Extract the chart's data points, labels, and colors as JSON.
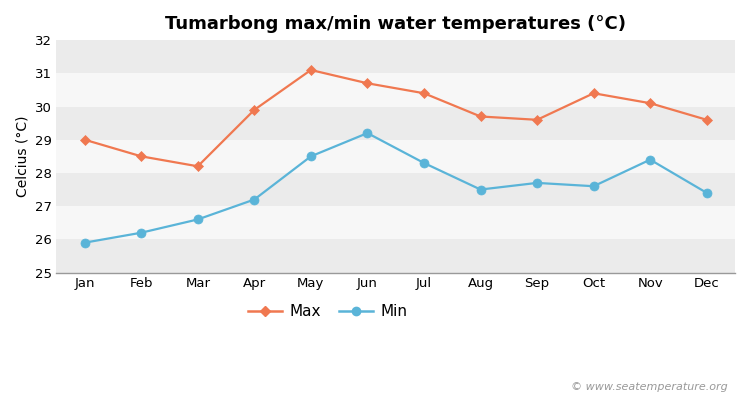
{
  "title": "Tumarbong max/min water temperatures (°C)",
  "ylabel": "Celcius (°C)",
  "months": [
    "Jan",
    "Feb",
    "Mar",
    "Apr",
    "May",
    "Jun",
    "Jul",
    "Aug",
    "Sep",
    "Oct",
    "Nov",
    "Dec"
  ],
  "max_temps": [
    29.0,
    28.5,
    28.2,
    29.9,
    31.1,
    30.7,
    30.4,
    29.7,
    29.6,
    30.4,
    30.1,
    29.6
  ],
  "min_temps": [
    25.9,
    26.2,
    26.6,
    27.2,
    28.5,
    29.2,
    28.3,
    27.5,
    27.7,
    27.6,
    28.4,
    27.4
  ],
  "max_color": "#f07850",
  "min_color": "#5ab4d8",
  "fig_bg_color": "#ffffff",
  "plot_bg_color": "#ffffff",
  "band_light": "#ebebeb",
  "band_white": "#f7f7f7",
  "ylim": [
    25,
    32
  ],
  "yticks": [
    25,
    26,
    27,
    28,
    29,
    30,
    31,
    32
  ],
  "watermark": "© www.seatemperature.org",
  "legend_max": "Max",
  "legend_min": "Min",
  "title_fontsize": 13,
  "label_fontsize": 10,
  "tick_fontsize": 9.5,
  "watermark_fontsize": 8
}
